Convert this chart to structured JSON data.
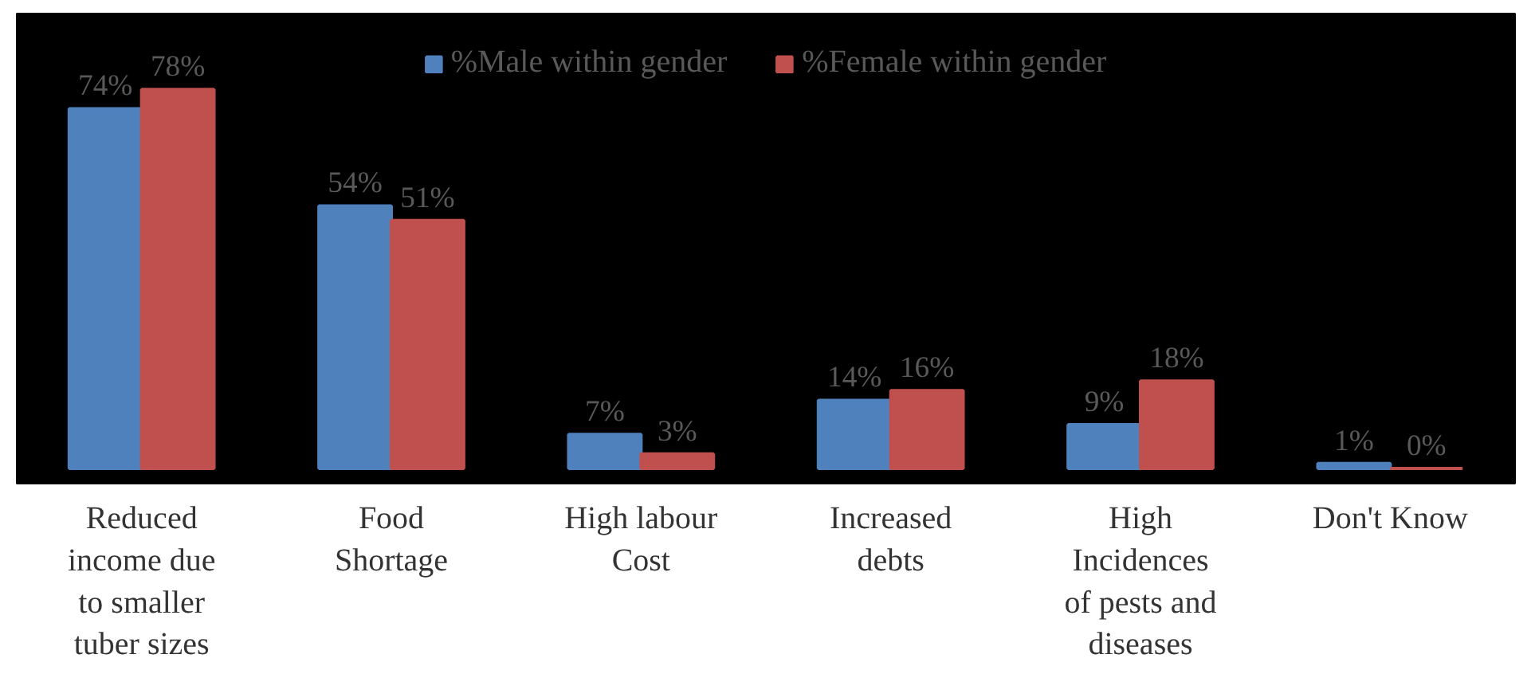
{
  "chart_data": {
    "type": "bar",
    "categories": [
      "Reduced income due to smaller tuber sizes",
      "Food Shortage",
      "High labour Cost",
      "Increased debts",
      "High Incidences of pests and diseases",
      "Don't Know"
    ],
    "series": [
      {
        "name": "%Male within gender",
        "color": "#4f81bd",
        "values": [
          74,
          54,
          7,
          14,
          9,
          1
        ],
        "value_labels": [
          "74%",
          "54%",
          "7%",
          "14%",
          "9%",
          "1%"
        ]
      },
      {
        "name": "%Female within gender",
        "color": "#c0504d",
        "values": [
          78,
          51,
          3,
          16,
          18,
          0
        ],
        "value_labels": [
          "78%",
          "51%",
          "3%",
          "16%",
          "18%",
          "0%"
        ]
      }
    ],
    "legend": "top",
    "grid": false
  }
}
